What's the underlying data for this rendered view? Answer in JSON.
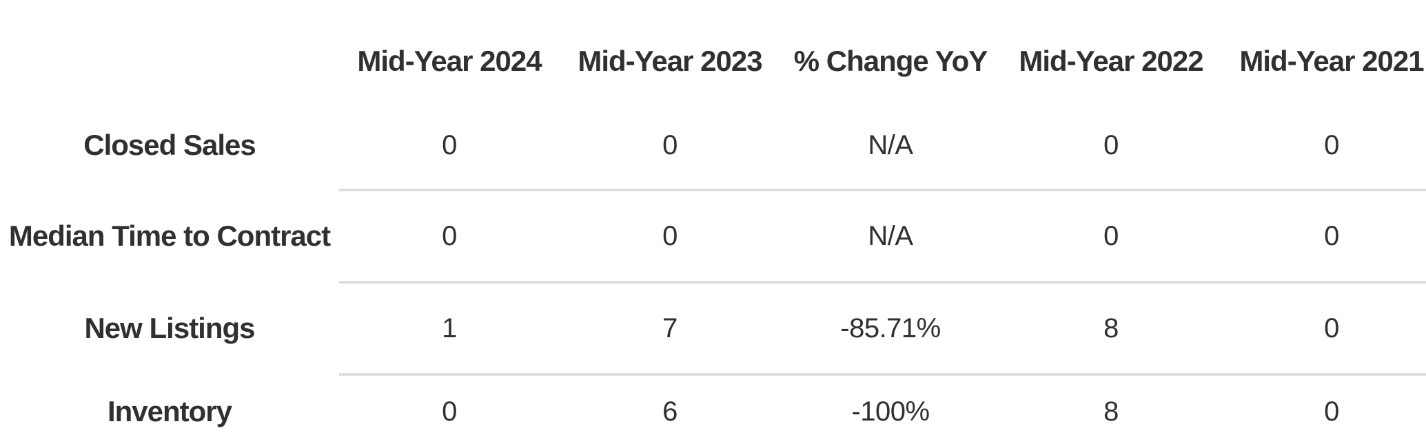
{
  "colors": {
    "background": "#ffffff",
    "text": "#303030",
    "divider": "#dedede"
  },
  "chart_data": {
    "type": "table",
    "corner_label": "",
    "columns": [
      "Mid-Year 2024",
      "Mid-Year 2023",
      "% Change YoY",
      "Mid-Year 2022",
      "Mid-Year 2021"
    ],
    "rows": [
      {
        "label": "Closed Sales",
        "values": [
          "0",
          "0",
          "N/A",
          "0",
          "0"
        ]
      },
      {
        "label": "Median Time to Contract",
        "values": [
          "0",
          "0",
          "N/A",
          "0",
          "0"
        ]
      },
      {
        "label": "New Listings",
        "values": [
          "1",
          "7",
          "-85.71%",
          "8",
          "0"
        ]
      },
      {
        "label": "Inventory",
        "values": [
          "0",
          "6",
          "-100%",
          "8",
          "0"
        ]
      }
    ]
  }
}
